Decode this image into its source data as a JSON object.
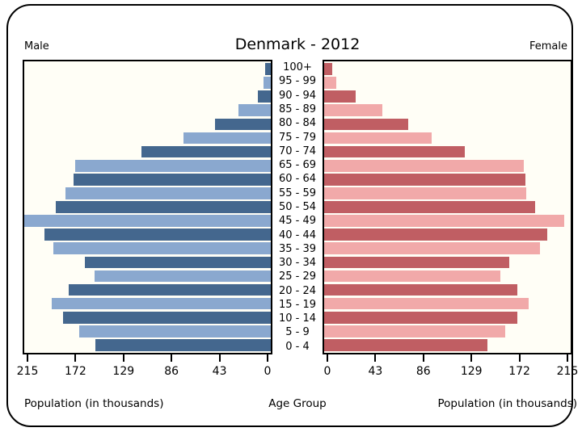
{
  "slide": {
    "title": "Denmark - 2012",
    "left_header": "Male",
    "right_header": "Female",
    "axis_label_left": "Population (in thousands)",
    "axis_label_center": "Age Group",
    "axis_label_right": "Population (in thousands)"
  },
  "colors": {
    "male_dark": "#44678e",
    "male_light": "#8aa8cf",
    "female_dark": "#c05e63",
    "female_light": "#f1a9a9",
    "plot_background": "#fffef6",
    "frame": "#000000"
  },
  "chart_data": {
    "type": "bar",
    "subtype": "population-pyramid",
    "title": "Denmark - 2012",
    "units": "thousands",
    "categories": [
      "100+",
      "95 - 99",
      "90 - 94",
      "85 - 89",
      "80 - 84",
      "75 - 79",
      "70 - 74",
      "65 - 69",
      "60 - 64",
      "55 - 59",
      "50 - 54",
      "45 - 49",
      "40 - 44",
      "35 - 39",
      "30 - 34",
      "25 - 29",
      "20 - 24",
      "15 - 19",
      "10 - 14",
      "5 - 9",
      "0 - 4"
    ],
    "series": [
      {
        "name": "Male",
        "side": "left",
        "values": [
          2,
          4,
          9,
          26,
          47,
          75,
          113,
          172,
          174,
          181,
          190,
          218,
          200,
          192,
          164,
          155,
          178,
          193,
          183,
          169,
          154
        ]
      },
      {
        "name": "Female",
        "side": "right",
        "values": [
          4,
          8,
          25,
          49,
          72,
          93,
          123,
          176,
          177,
          178,
          186,
          212,
          197,
          190,
          163,
          155,
          170,
          180,
          170,
          159,
          143
        ]
      }
    ],
    "xlabel_left": "Population (in thousands)",
    "xlabel_right": "Population (in thousands)",
    "center_label": "Age Group",
    "ticks_left": [
      215,
      172,
      129,
      86,
      43,
      0
    ],
    "ticks_right": [
      0,
      43,
      86,
      129,
      172,
      215
    ],
    "xlim": [
      0,
      215
    ],
    "grid": false,
    "legend": "none"
  }
}
